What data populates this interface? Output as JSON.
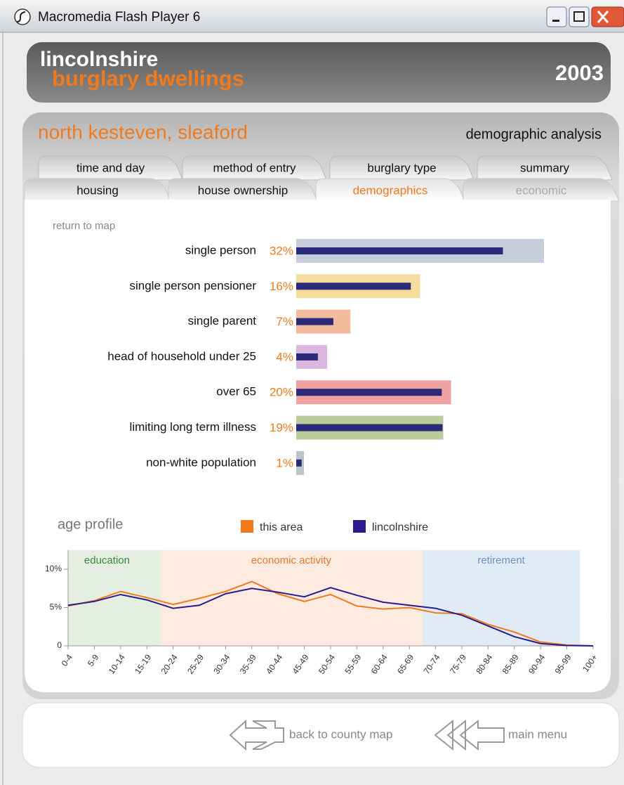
{
  "window": {
    "title": "Macromedia Flash Player 6"
  },
  "header": {
    "title": "lincolnshire",
    "subtitle": "burglary dwellings",
    "year": "2003"
  },
  "area": {
    "name": "north kesteven, sleaford",
    "section": "demographic analysis"
  },
  "tabs": {
    "row1": [
      "time and day",
      "method of entry",
      "burglary type",
      "summary"
    ],
    "row2": [
      "housing",
      "house ownership",
      "demographics",
      "economic"
    ]
  },
  "return_link": "return to map",
  "chart_data": [
    {
      "type": "bar",
      "orientation": "horizontal",
      "categories": [
        "single person",
        "single person pensioner",
        "single parent",
        "head of household under 25",
        "over 65",
        "limiting long term illness",
        "non-white population"
      ],
      "series": [
        {
          "colors": [
            "#c7cddd",
            "#f4dc9c",
            "#f1bb9c",
            "#dab7de",
            "#f0a1a1",
            "#bacb9c",
            "#b9c6c8"
          ],
          "values": [
            32,
            16,
            7,
            4,
            20,
            19,
            1
          ],
          "value_labels": [
            "32%",
            "16%",
            "7%",
            "4%",
            "20%",
            "19%",
            "1%"
          ]
        },
        {
          "color": "#2b2a78",
          "values": [
            26.7,
            14.8,
            4.8,
            2.8,
            18.8,
            18.9,
            0.7
          ]
        }
      ]
    },
    {
      "type": "line",
      "title": "age profile",
      "categories": [
        "0-4",
        "5-9",
        "10-14",
        "15-19",
        "20-24",
        "25-29",
        "30-34",
        "35-39",
        "40-44",
        "45-49",
        "50-54",
        "55-59",
        "60-64",
        "65-69",
        "70-74",
        "75-79",
        "80-84",
        "85-89",
        "90-94",
        "95-99",
        "100+"
      ],
      "series": [
        {
          "name": "this area",
          "color": "#f07a1e",
          "values": [
            5.2,
            5.9,
            7.1,
            6.3,
            5.4,
            6.2,
            7.1,
            8.4,
            6.8,
            5.8,
            6.7,
            5.2,
            4.8,
            5.0,
            4.3,
            4.2,
            2.8,
            1.8,
            0.5,
            0.1,
            0
          ]
        },
        {
          "name": "lincolnshire",
          "color": "#2a1c8c",
          "values": [
            5.3,
            5.8,
            6.7,
            6.0,
            4.9,
            5.3,
            6.8,
            7.5,
            7.0,
            6.4,
            7.6,
            6.6,
            5.7,
            5.3,
            4.9,
            4.0,
            2.6,
            1.2,
            0.3,
            0.05,
            0
          ]
        }
      ],
      "ylim": [
        0,
        12.5
      ],
      "yticks": [
        0,
        {
          "value": 5,
          "label": "5%"
        },
        {
          "value": 10,
          "label": "10%"
        }
      ],
      "regions": [
        {
          "label": "education",
          "from": "0-4",
          "to": "15-19",
          "color": "#e4efe1",
          "label_color": "#3a8a3a"
        },
        {
          "label": "economic activity",
          "from": "20-24",
          "to": "65-69",
          "color": "#fdebdf",
          "label_color": "#e8782c"
        },
        {
          "label": "retirement",
          "from": "70-74",
          "to": "95-99",
          "color": "#e0ebf6",
          "label_color": "#6f8fc2"
        }
      ]
    }
  ],
  "nav": {
    "back": "back to county map",
    "menu": "main menu"
  }
}
